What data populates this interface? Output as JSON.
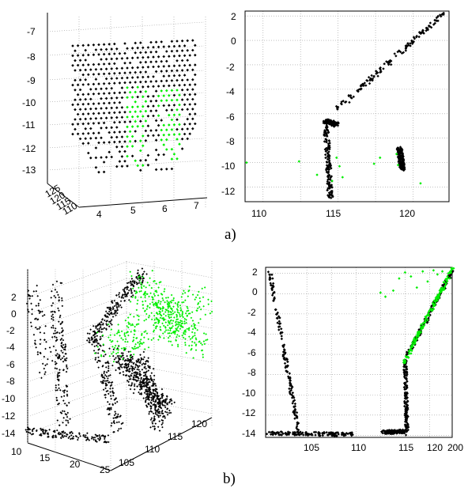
{
  "figure": {
    "captions": [
      "a)",
      "b)"
    ]
  },
  "colors": {
    "point_default": "#000000",
    "point_highlight": "#00ee00",
    "grid": "#9a9a9a"
  },
  "chart_data": [
    {
      "id": "a-left",
      "type": "scatter",
      "title": "",
      "projection": "3d",
      "xlabel": "",
      "ylabel": "",
      "zlabel": "",
      "xticks": [
        "4",
        "5",
        "6",
        "7"
      ],
      "yticks": [
        "110",
        "115",
        "120",
        "125"
      ],
      "zticks": [
        "-7",
        "-8",
        "-9",
        "-10",
        "-11",
        "-12",
        "-13"
      ],
      "xlim": [
        3.3,
        7.9
      ],
      "zlim": [
        -13.4,
        -6.7
      ],
      "grid": true,
      "series": [
        {
          "color": "#000000",
          "description_values": {
            "grid_x": [
              3.6,
              7.4
            ],
            "grid_z": [
              -7.6,
              -13.0
            ],
            "spacing": 0.2
          }
        },
        {
          "color": "#00ee00",
          "region_x": [
            4.9,
            6.4
          ],
          "region_z": [
            -9.5,
            -12.4
          ]
        }
      ]
    },
    {
      "id": "a-right",
      "type": "scatter",
      "title": "",
      "xlabel": "",
      "ylabel": "",
      "xticks": [
        "110",
        "115",
        "120"
      ],
      "yticks": [
        "2",
        "0",
        "-2",
        "-4",
        "-6",
        "-8",
        "-10",
        "-12"
      ],
      "xlim": [
        108.8,
        122.4
      ],
      "ylim": [
        -13.2,
        2.4
      ],
      "grid": true,
      "series": [
        {
          "color": "#000000",
          "segments": [
            {
              "x": [
                115.0,
                122.0
              ],
              "y": [
                -5.6,
                2.2
              ]
            },
            {
              "x": [
                114.2,
                114.9
              ],
              "y": [
                -6.6,
                -6.9
              ]
            },
            {
              "x": [
                114.2,
                114.5
              ],
              "y": [
                -7.0,
                -13.0
              ]
            },
            {
              "x": [
                119.1,
                119.3
              ],
              "y": [
                -8.8,
                -10.6
              ]
            }
          ]
        },
        {
          "color": "#00ee00",
          "points": [
            [
              108.9,
              -10.0
            ],
            [
              112.4,
              -9.9
            ],
            [
              113.6,
              -11.0
            ],
            [
              114.6,
              -11.5
            ],
            [
              114.9,
              -9.6
            ],
            [
              115.1,
              -10.3
            ],
            [
              115.3,
              -11.2
            ],
            [
              117.4,
              -10.1
            ],
            [
              117.8,
              -9.6
            ],
            [
              118.9,
              -9.3
            ],
            [
              119.0,
              -10.2
            ],
            [
              120.5,
              -11.7
            ]
          ]
        }
      ]
    },
    {
      "id": "b-left",
      "type": "scatter",
      "title": "",
      "projection": "3d",
      "xlabel": "",
      "ylabel": "",
      "zlabel": "",
      "xticks": [
        "10",
        "15",
        "20",
        "25"
      ],
      "yticks": [
        "105",
        "110",
        "115",
        "120"
      ],
      "zticks": [
        "2",
        "0",
        "-2",
        "-4",
        "-6",
        "-8",
        "-10",
        "-12",
        "-14"
      ],
      "zlim": [
        -14.4,
        3.0
      ],
      "grid": true,
      "series": [
        {
          "color": "#000000",
          "description": ""
        },
        {
          "color": "#00ee00",
          "description": ""
        }
      ]
    },
    {
      "id": "b-right",
      "type": "scatter",
      "title": "",
      "xlabel": "",
      "ylabel": "",
      "xticks": [
        "105",
        "110",
        "115",
        "120",
        "200"
      ],
      "yticks": [
        "2",
        "0",
        "-2",
        "-4",
        "-6",
        "-8",
        "-10",
        "-12",
        "-14"
      ],
      "xlim": [
        100.8,
        119.8
      ],
      "ylim": [
        -14.2,
        2.6
      ],
      "grid": true,
      "series": [
        {
          "color": "#000000",
          "segments": [
            {
              "x": [
                101.2,
                104.2
              ],
              "y": [
                2.2,
                -13.8
              ]
            },
            {
              "x": [
                101.0,
                109.8
              ],
              "y": [
                -13.8,
                -13.9
              ]
            },
            {
              "x": [
                112.7,
                114.9
              ],
              "y": [
                -13.7,
                -13.6
              ]
            },
            {
              "x": [
                115.0,
                115.2
              ],
              "y": [
                -6.6,
                -13.9
              ]
            },
            {
              "x": [
                115.1,
                119.8
              ],
              "y": [
                -6.3,
                2.2
              ]
            }
          ]
        },
        {
          "color": "#00ee00",
          "segments": [
            {
              "x": [
                114.9,
                119.8
              ],
              "y": [
                -6.8,
                2.4
              ]
            }
          ],
          "points": [
            [
              112.5,
              0.1
            ],
            [
              113.0,
              -0.3
            ],
            [
              113.8,
              0.3
            ],
            [
              114.4,
              1.5
            ],
            [
              115.0,
              2.1
            ],
            [
              115.6,
              1.7
            ],
            [
              116.2,
              0.6
            ],
            [
              116.8,
              2.2
            ],
            [
              117.3,
              1.2
            ],
            [
              117.9,
              2.3
            ],
            [
              118.3,
              1.9
            ],
            [
              118.8,
              2.2
            ]
          ]
        }
      ]
    }
  ]
}
